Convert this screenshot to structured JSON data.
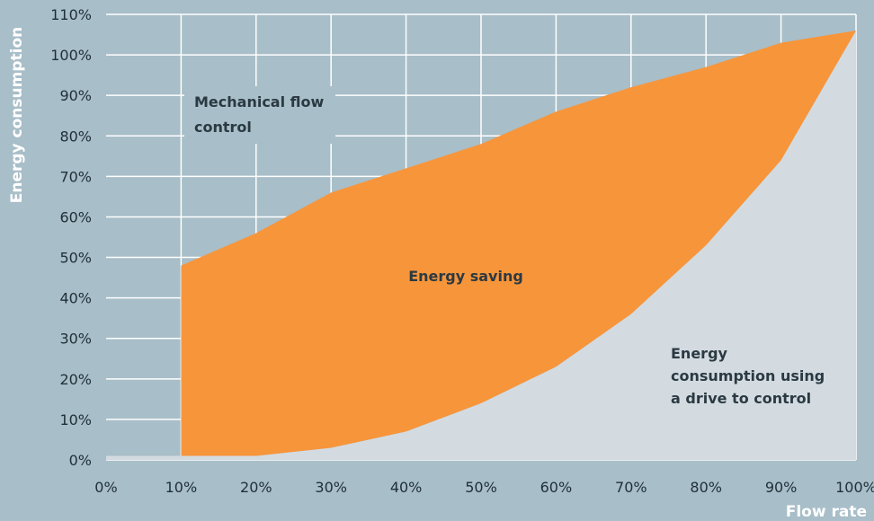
{
  "chart_data": {
    "type": "area",
    "title": "",
    "xlabel": "Flow rate",
    "ylabel": "Energy consumption",
    "x": [
      10,
      20,
      30,
      40,
      50,
      60,
      70,
      80,
      90,
      100
    ],
    "x_ticks": [
      "0%",
      "10%",
      "20%",
      "30%",
      "40%",
      "50%",
      "60%",
      "70%",
      "80%",
      "90%",
      "100%"
    ],
    "y_ticks": [
      "0%",
      "10%",
      "20%",
      "30%",
      "40%",
      "50%",
      "60%",
      "70%",
      "80%",
      "90%",
      "100%",
      "110%"
    ],
    "xlim": [
      0,
      100
    ],
    "ylim": [
      0,
      110
    ],
    "grid": true,
    "series": [
      {
        "name": "Mechanical flow control",
        "x": [
          10,
          20,
          30,
          40,
          50,
          60,
          70,
          80,
          90,
          100
        ],
        "values": [
          48,
          56,
          66,
          72,
          78,
          86,
          92,
          97,
          103,
          106
        ]
      },
      {
        "name": "Energy consumption using a drive to control",
        "x": [
          0,
          10,
          20,
          30,
          40,
          50,
          60,
          70,
          80,
          90,
          100
        ],
        "values": [
          1,
          1,
          1,
          3,
          7,
          14,
          23,
          36,
          53,
          74,
          106
        ]
      }
    ],
    "annotations": {
      "mechanical": [
        "Mechanical flow",
        "control"
      ],
      "saving": [
        "Energy saving"
      ],
      "drive": [
        "Energy",
        "consumption using",
        "a drive to control"
      ]
    },
    "colors": {
      "background": "#a8bec8",
      "grid": "#ffffff",
      "saving_fill": "#f7953b",
      "drive_fill": "#d3dbe1",
      "text": "#1f2f38",
      "axis_label": "#ffffff"
    }
  }
}
